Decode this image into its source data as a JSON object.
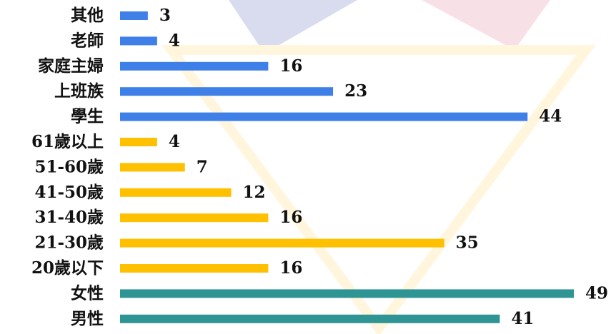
{
  "chart_data": {
    "type": "bar",
    "orientation": "horizontal",
    "categories": [
      "其他",
      "老師",
      "家庭主婦",
      "上班族",
      "學生",
      "61歲以上",
      "51-60歲",
      "41-50歲",
      "31-40歲",
      "21-30歲",
      "20歲以下",
      "女性",
      "男性"
    ],
    "values": [
      3,
      4,
      16,
      23,
      44,
      4,
      7,
      12,
      16,
      35,
      16,
      49,
      41
    ],
    "colors": [
      "#3f80e8",
      "#3f80e8",
      "#3f80e8",
      "#3f80e8",
      "#3f80e8",
      "#ffc000",
      "#ffc000",
      "#ffc000",
      "#ffc000",
      "#ffc000",
      "#ffc000",
      "#2f9494",
      "#2f9494"
    ]
  }
}
